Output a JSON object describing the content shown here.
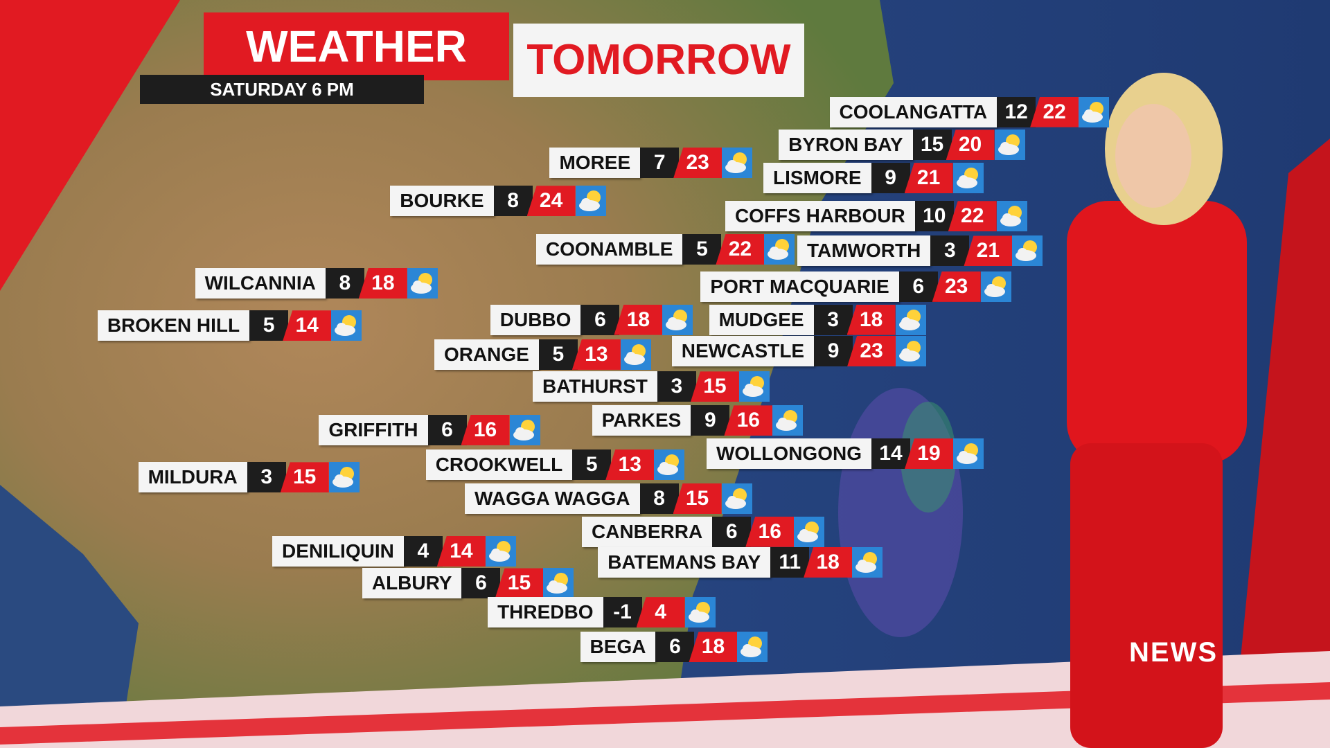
{
  "header": {
    "title": "WEATHER",
    "title_highlight": "TOMORROW",
    "subtitle": "SATURDAY 6 PM"
  },
  "logo": "NEWS",
  "cities": [
    {
      "name": "COOLANGATTA",
      "min": 12,
      "max": 22
    },
    {
      "name": "BYRON BAY",
      "min": 15,
      "max": 20
    },
    {
      "name": "MOREE",
      "min": 7,
      "max": 23
    },
    {
      "name": "LISMORE",
      "min": 9,
      "max": 21
    },
    {
      "name": "BOURKE",
      "min": 8,
      "max": 24
    },
    {
      "name": "COFFS HARBOUR",
      "min": 10,
      "max": 22
    },
    {
      "name": "COONAMBLE",
      "min": 5,
      "max": 22
    },
    {
      "name": "TAMWORTH",
      "min": 3,
      "max": 21
    },
    {
      "name": "WILCANNIA",
      "min": 8,
      "max": 18
    },
    {
      "name": "PORT MACQUARIE",
      "min": 6,
      "max": 23
    },
    {
      "name": "BROKEN HILL",
      "min": 5,
      "max": 14
    },
    {
      "name": "DUBBO",
      "min": 6,
      "max": 18
    },
    {
      "name": "MUDGEE",
      "min": 3,
      "max": 18
    },
    {
      "name": "ORANGE",
      "min": 5,
      "max": 13
    },
    {
      "name": "NEWCASTLE",
      "min": 9,
      "max": 23
    },
    {
      "name": "BATHURST",
      "min": 3,
      "max": 15
    },
    {
      "name": "GRIFFITH",
      "min": 6,
      "max": 16
    },
    {
      "name": "PARKES",
      "min": 9,
      "max": 16
    },
    {
      "name": "WOLLONGONG",
      "min": 14,
      "max": 19
    },
    {
      "name": "MILDURA",
      "min": 3,
      "max": 15
    },
    {
      "name": "CROOKWELL",
      "min": 5,
      "max": 13
    },
    {
      "name": "WAGGA WAGGA",
      "min": 8,
      "max": 15
    },
    {
      "name": "CANBERRA",
      "min": 6,
      "max": 16
    },
    {
      "name": "DENILIQUIN",
      "min": 4,
      "max": 14
    },
    {
      "name": "BATEMANS BAY",
      "min": 11,
      "max": 18
    },
    {
      "name": "ALBURY",
      "min": 6,
      "max": 15
    },
    {
      "name": "THREDBO",
      "min": -1,
      "max": 4
    },
    {
      "name": "BEGA",
      "min": 6,
      "max": 18
    }
  ]
}
